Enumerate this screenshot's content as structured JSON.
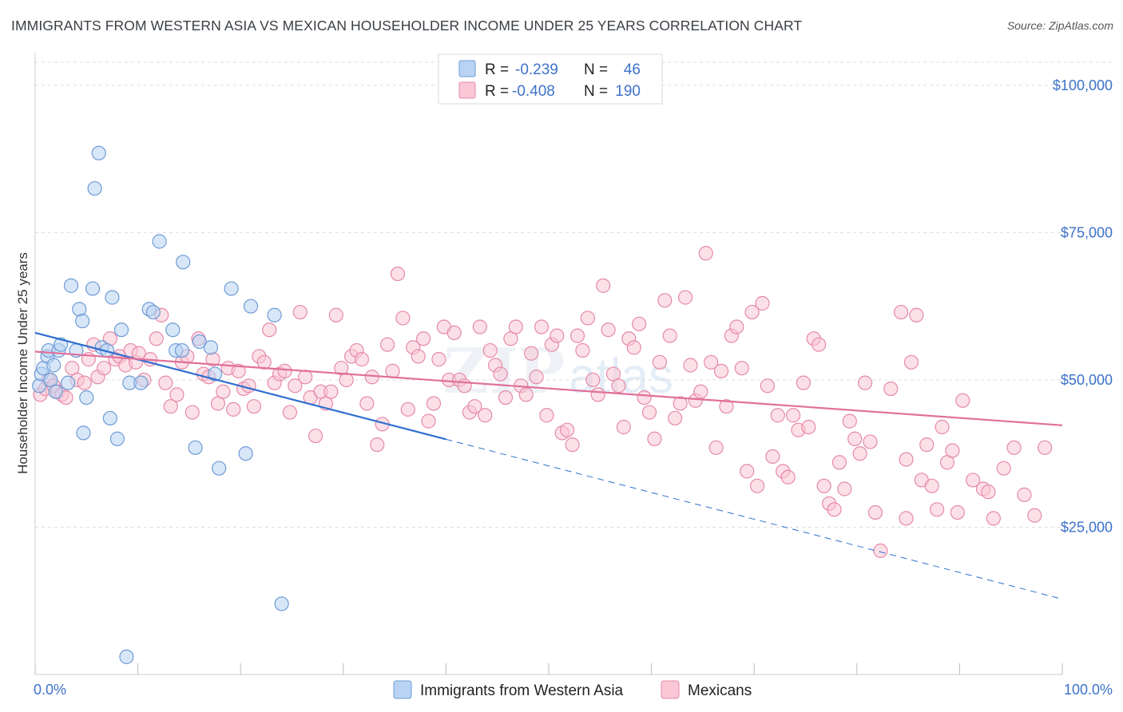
{
  "title": "IMMIGRANTS FROM WESTERN ASIA VS MEXICAN HOUSEHOLDER INCOME UNDER 25 YEARS CORRELATION CHART",
  "source": "Source: ZipAtlas.com",
  "watermark": "ZIPatlas",
  "colors": {
    "blue_fill": "#b8d3f3",
    "blue_stroke": "#6e9bd6",
    "blue_line": "#2f6fcf",
    "pink_fill": "#f9c7d6",
    "pink_stroke": "#e58aa8",
    "pink_line": "#e0709a",
    "tick_text": "#3d72c9",
    "grid": "#dddddd"
  },
  "legend": {
    "rows": [
      {
        "r_label": "R =",
        "r_value": "-0.239",
        "n_label": "N =",
        "n_value": "46"
      },
      {
        "r_label": "R =",
        "r_value": "-0.408",
        "n_label": "N =",
        "n_value": "190"
      }
    ]
  },
  "chart_data": {
    "type": "scatter",
    "ylabel": "Householder Income Under 25 years",
    "xlim": [
      0,
      100
    ],
    "ylim": [
      0,
      105000
    ],
    "x_tick_labels": [
      "0.0%",
      "100.0%"
    ],
    "y_ticks": [
      25000,
      50000,
      75000,
      100000
    ],
    "y_tick_labels": [
      "$25,000",
      "$50,000",
      "$75,000",
      "$100,000"
    ],
    "grid": true,
    "series": [
      {
        "name": "Immigrants from Western Asia",
        "r": -0.239,
        "n": 46,
        "trend": {
          "x0": 0,
          "y0": 58000,
          "x_solid_end": 40,
          "x1": 100,
          "y1": 12800
        },
        "points": [
          [
            0.4,
            49
          ],
          [
            0.6,
            51
          ],
          [
            0.8,
            52
          ],
          [
            1.2,
            54
          ],
          [
            1.3,
            55
          ],
          [
            1.5,
            50
          ],
          [
            1.8,
            52.5
          ],
          [
            2.0,
            48
          ],
          [
            2.3,
            55
          ],
          [
            2.5,
            56
          ],
          [
            3.2,
            49.5
          ],
          [
            3.5,
            66
          ],
          [
            4.0,
            55
          ],
          [
            4.3,
            62
          ],
          [
            4.6,
            60
          ],
          [
            5.0,
            47
          ],
          [
            5.6,
            65.5
          ],
          [
            6.2,
            88.5
          ],
          [
            5.8,
            82.5
          ],
          [
            6.5,
            55.5
          ],
          [
            7.0,
            55
          ],
          [
            7.5,
            64
          ],
          [
            8.0,
            40
          ],
          [
            8.4,
            58.5
          ],
          [
            8.9,
            3
          ],
          [
            9.2,
            49.5
          ],
          [
            10.3,
            49.5
          ],
          [
            11.1,
            62
          ],
          [
            11.5,
            61.5
          ],
          [
            12.1,
            73.5
          ],
          [
            13.4,
            58.5
          ],
          [
            13.7,
            55
          ],
          [
            14.3,
            55
          ],
          [
            14.4,
            70
          ],
          [
            15.6,
            38.5
          ],
          [
            16.0,
            56.5
          ],
          [
            17.1,
            55.5
          ],
          [
            17.5,
            51
          ],
          [
            17.9,
            35
          ],
          [
            19.1,
            65.5
          ],
          [
            20.5,
            37.5
          ],
          [
            21.0,
            62.5
          ],
          [
            23.3,
            61
          ],
          [
            24.0,
            12
          ],
          [
            7.3,
            43.5
          ],
          [
            4.7,
            41
          ]
        ]
      },
      {
        "name": "Mexicans",
        "r": -0.408,
        "n": 190,
        "trend": {
          "x0": 0,
          "y0": 54800,
          "x1": 100,
          "y1": 42300
        },
        "points": [
          [
            0.5,
            47.5
          ],
          [
            1.0,
            48.5
          ],
          [
            1.3,
            50
          ],
          [
            1.8,
            49
          ],
          [
            2.2,
            48
          ],
          [
            2.6,
            47.5
          ],
          [
            3.0,
            47
          ],
          [
            3.6,
            52
          ],
          [
            4.1,
            50
          ],
          [
            4.8,
            49.5
          ],
          [
            5.2,
            53.5
          ],
          [
            5.7,
            56
          ],
          [
            6.1,
            50.5
          ],
          [
            6.7,
            52
          ],
          [
            7.3,
            57
          ],
          [
            7.8,
            53.5
          ],
          [
            8.2,
            54
          ],
          [
            8.8,
            52.5
          ],
          [
            9.3,
            55
          ],
          [
            9.8,
            53
          ],
          [
            10.1,
            54.5
          ],
          [
            10.6,
            50
          ],
          [
            11.2,
            53.5
          ],
          [
            11.8,
            57
          ],
          [
            12.3,
            61
          ],
          [
            12.7,
            49.5
          ],
          [
            13.2,
            45.5
          ],
          [
            13.8,
            47.5
          ],
          [
            14.3,
            53
          ],
          [
            14.8,
            54
          ],
          [
            15.3,
            44.5
          ],
          [
            15.9,
            57
          ],
          [
            16.4,
            51
          ],
          [
            16.9,
            50.5
          ],
          [
            17.3,
            53.5
          ],
          [
            17.8,
            46
          ],
          [
            18.3,
            48
          ],
          [
            18.8,
            52
          ],
          [
            19.3,
            45
          ],
          [
            19.8,
            51.5
          ],
          [
            20.3,
            48.5
          ],
          [
            20.8,
            49
          ],
          [
            21.3,
            45.5
          ],
          [
            21.8,
            54
          ],
          [
            22.3,
            53
          ],
          [
            22.8,
            58.5
          ],
          [
            23.3,
            49.5
          ],
          [
            23.8,
            51
          ],
          [
            24.3,
            51.5
          ],
          [
            24.8,
            44.5
          ],
          [
            25.3,
            49
          ],
          [
            25.8,
            61.5
          ],
          [
            26.3,
            50.5
          ],
          [
            26.8,
            47
          ],
          [
            27.3,
            40.5
          ],
          [
            27.8,
            48
          ],
          [
            28.3,
            46
          ],
          [
            28.8,
            48
          ],
          [
            29.3,
            61
          ],
          [
            29.8,
            52
          ],
          [
            30.3,
            50
          ],
          [
            30.8,
            54
          ],
          [
            31.3,
            55
          ],
          [
            31.8,
            53.5
          ],
          [
            32.3,
            46
          ],
          [
            32.8,
            50.5
          ],
          [
            33.3,
            39
          ],
          [
            33.8,
            42.5
          ],
          [
            34.3,
            56
          ],
          [
            34.8,
            51.5
          ],
          [
            35.3,
            68
          ],
          [
            35.8,
            60.5
          ],
          [
            36.3,
            45
          ],
          [
            36.8,
            55.5
          ],
          [
            37.3,
            54
          ],
          [
            37.8,
            57
          ],
          [
            38.3,
            43
          ],
          [
            38.8,
            46
          ],
          [
            39.3,
            53.5
          ],
          [
            39.8,
            59
          ],
          [
            40.3,
            50
          ],
          [
            40.8,
            58
          ],
          [
            41.3,
            50
          ],
          [
            41.8,
            49
          ],
          [
            42.3,
            44.5
          ],
          [
            42.8,
            45.5
          ],
          [
            43.3,
            59
          ],
          [
            43.8,
            44
          ],
          [
            44.3,
            55
          ],
          [
            44.8,
            52.5
          ],
          [
            45.3,
            51
          ],
          [
            45.8,
            47
          ],
          [
            46.3,
            57
          ],
          [
            46.8,
            59
          ],
          [
            47.3,
            49
          ],
          [
            47.8,
            47.5
          ],
          [
            48.3,
            54.5
          ],
          [
            48.8,
            50.5
          ],
          [
            49.3,
            59
          ],
          [
            49.8,
            44
          ],
          [
            50.3,
            56
          ],
          [
            50.8,
            57.5
          ],
          [
            51.3,
            41
          ],
          [
            51.8,
            41.5
          ],
          [
            52.3,
            39
          ],
          [
            52.8,
            57.5
          ],
          [
            53.3,
            55
          ],
          [
            53.8,
            60.5
          ],
          [
            54.3,
            50
          ],
          [
            54.8,
            47.5
          ],
          [
            55.3,
            66
          ],
          [
            55.8,
            58.5
          ],
          [
            56.3,
            51
          ],
          [
            56.8,
            49
          ],
          [
            57.3,
            42
          ],
          [
            57.8,
            57
          ],
          [
            58.3,
            55.5
          ],
          [
            58.8,
            59.5
          ],
          [
            59.3,
            47
          ],
          [
            59.8,
            44.5
          ],
          [
            60.3,
            40
          ],
          [
            60.8,
            53
          ],
          [
            61.3,
            63.5
          ],
          [
            61.8,
            57.5
          ],
          [
            62.3,
            43.5
          ],
          [
            62.8,
            46
          ],
          [
            63.3,
            64
          ],
          [
            63.8,
            52.5
          ],
          [
            64.3,
            46.5
          ],
          [
            64.8,
            48
          ],
          [
            65.3,
            71.5
          ],
          [
            65.8,
            53
          ],
          [
            66.3,
            38.5
          ],
          [
            66.8,
            51.5
          ],
          [
            67.3,
            45.5
          ],
          [
            67.8,
            57.5
          ],
          [
            68.3,
            59
          ],
          [
            68.8,
            52
          ],
          [
            69.3,
            34.5
          ],
          [
            69.8,
            61.5
          ],
          [
            70.3,
            32
          ],
          [
            70.8,
            63
          ],
          [
            71.3,
            49
          ],
          [
            71.8,
            37
          ],
          [
            72.3,
            44
          ],
          [
            72.8,
            34.5
          ],
          [
            73.3,
            33.5
          ],
          [
            73.8,
            44
          ],
          [
            74.3,
            41.5
          ],
          [
            74.8,
            49.5
          ],
          [
            75.3,
            42
          ],
          [
            75.8,
            57
          ],
          [
            76.3,
            56
          ],
          [
            76.8,
            32
          ],
          [
            77.3,
            29
          ],
          [
            77.8,
            28
          ],
          [
            78.3,
            36
          ],
          [
            78.8,
            31.5
          ],
          [
            79.3,
            43
          ],
          [
            79.8,
            40
          ],
          [
            80.3,
            37.5
          ],
          [
            80.8,
            49.5
          ],
          [
            81.3,
            39.5
          ],
          [
            81.8,
            27.5
          ],
          [
            82.3,
            21
          ],
          [
            83.3,
            48.5
          ],
          [
            84.3,
            61.5
          ],
          [
            84.8,
            26.5
          ],
          [
            85.3,
            53
          ],
          [
            85.8,
            61
          ],
          [
            86.3,
            33
          ],
          [
            86.8,
            39
          ],
          [
            87.3,
            32
          ],
          [
            87.8,
            28
          ],
          [
            88.3,
            42
          ],
          [
            88.8,
            36
          ],
          [
            89.3,
            38
          ],
          [
            89.8,
            27.5
          ],
          [
            90.3,
            46.5
          ],
          [
            91.3,
            33
          ],
          [
            92.3,
            31.5
          ],
          [
            92.8,
            31
          ],
          [
            93.3,
            26.5
          ],
          [
            94.3,
            35
          ],
          [
            95.3,
            38.5
          ],
          [
            96.3,
            30.5
          ],
          [
            97.3,
            27
          ],
          [
            98.3,
            38.5
          ],
          [
            84.8,
            36.5
          ]
        ]
      }
    ]
  }
}
